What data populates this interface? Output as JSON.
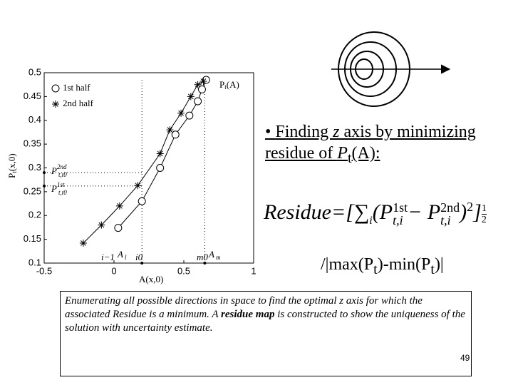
{
  "chart_data": {
    "type": "line",
    "y_label": {
      "text": "P",
      "sub": "t",
      "rest": "(x,0)"
    },
    "x_label": "A(x,0)",
    "curve_label": {
      "text": "P",
      "sub": "t",
      "rest": "(A)"
    },
    "xlim": [
      -0.5,
      1
    ],
    "xticks": [
      -0.5,
      0,
      0.5,
      1
    ],
    "ylim": [
      0.1,
      0.5
    ],
    "yticks": [
      0.1,
      0.15,
      0.2,
      0.25,
      0.3,
      0.35,
      0.4,
      0.45,
      0.5
    ],
    "series": [
      {
        "name": "1st half",
        "marker": "circle",
        "color": "#000000",
        "x": [
          0.03,
          0.2,
          0.33,
          0.44,
          0.54,
          0.6,
          0.63,
          0.66
        ],
        "values": [
          0.174,
          0.23,
          0.3,
          0.37,
          0.41,
          0.44,
          0.465,
          0.485
        ]
      },
      {
        "name": "2nd half",
        "marker": "star",
        "color": "#000000",
        "x": [
          -0.22,
          -0.09,
          0.04,
          0.17,
          0.33,
          0.4,
          0.48,
          0.55,
          0.6,
          0.64
        ],
        "values": [
          0.142,
          0.18,
          0.22,
          0.263,
          0.33,
          0.38,
          0.415,
          0.45,
          0.475,
          0.482
        ]
      }
    ],
    "reference_lines": {
      "x": [
        0.2,
        0.65
      ],
      "y": [
        0.29,
        0.262
      ]
    },
    "annotations": [
      {
        "text": "P",
        "sup": "2nd",
        "sub": "t,t0"
      },
      {
        "text": "P",
        "sup": "1st",
        "sub": "t,t0"
      },
      {
        "text": "i−1"
      },
      {
        "text": "A",
        "sub": "l"
      },
      {
        "text": "i0"
      },
      {
        "text": "m0"
      },
      {
        "text": "A",
        "sub": "m"
      }
    ]
  },
  "slide": {
    "bullet": [
      "Finding ",
      "z",
      " axis by minimizing residue of ",
      "P",
      "t",
      "(A):"
    ],
    "formula": {
      "lead": "Residue=[∑",
      "i": "i",
      "open": "(P",
      "sup1": "1st",
      "sub1": "t,i",
      "minus": "− P",
      "sup2": "2nd",
      "sub2": "t,i",
      "close": ")",
      "sq": "2",
      "end": "]",
      "num": "1",
      "den": "2"
    },
    "normalizer": [
      "/|max(P",
      "t",
      ")-min(P",
      "t",
      ")|"
    ],
    "note": {
      "before": "Enumerating all possible directions in space to find the optimal z axis for which the associated Residue is a minimum. A ",
      "bold": "residue map",
      "after": " is constructed to show the uniqueness of the solution with uncertainty estimate."
    },
    "page_number": "49"
  }
}
